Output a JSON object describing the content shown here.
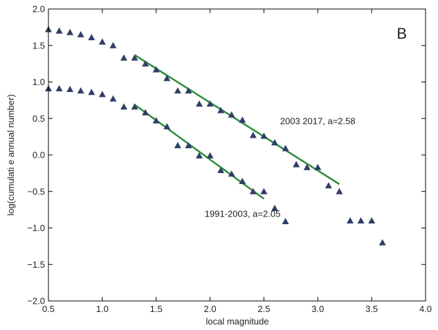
{
  "chart_data": {
    "type": "scatter",
    "title": "",
    "panel_label": "B",
    "xlabel": "local magnitude",
    "ylabel": "log(cumulati  e annual number)",
    "xlim": [
      0.5,
      4.0
    ],
    "ylim": [
      -2.0,
      2.0
    ],
    "x_ticks": [
      "0.5",
      "1.0",
      "1.5",
      "2.0",
      "2.5",
      "3.0",
      "3.5",
      "4.0"
    ],
    "y_ticks": [
      "2.0",
      "1.5",
      "1.0",
      "0.5",
      "0.0",
      "−0.5",
      "−1.0",
      "−1.5",
      "−2.0"
    ],
    "marker_color": "#2f3e66",
    "line_color": "#2e8b3a",
    "grid": false,
    "series": [
      {
        "points": [
          [
            0.5,
            1.72
          ],
          [
            0.6,
            1.7
          ],
          [
            0.7,
            1.68
          ],
          [
            0.8,
            1.65
          ],
          [
            0.9,
            1.61
          ],
          [
            1.0,
            1.55
          ],
          [
            1.1,
            1.5
          ],
          [
            1.2,
            1.33
          ],
          [
            1.3,
            1.33
          ],
          [
            1.4,
            1.25
          ],
          [
            1.5,
            1.17
          ],
          [
            1.6,
            1.05
          ],
          [
            1.7,
            0.88
          ],
          [
            1.8,
            0.88
          ],
          [
            1.9,
            0.7
          ],
          [
            2.0,
            0.7
          ],
          [
            2.1,
            0.61
          ],
          [
            2.2,
            0.55
          ],
          [
            2.3,
            0.48
          ],
          [
            2.4,
            0.27
          ],
          [
            2.5,
            0.26
          ],
          [
            2.6,
            0.17
          ],
          [
            2.7,
            0.09
          ],
          [
            2.8,
            -0.13
          ],
          [
            2.9,
            -0.17
          ],
          [
            3.0,
            -0.17
          ],
          [
            3.1,
            -0.42
          ],
          [
            3.2,
            -0.5
          ],
          [
            3.3,
            -0.9
          ],
          [
            3.4,
            -0.9
          ],
          [
            3.5,
            -0.9
          ],
          [
            3.6,
            -1.2
          ]
        ],
        "fit_line": [
          [
            1.3,
            1.37
          ],
          [
            3.2,
            -0.4
          ]
        ]
      },
      {
        "points": [
          [
            0.5,
            0.91
          ],
          [
            0.6,
            0.91
          ],
          [
            0.7,
            0.9
          ],
          [
            0.8,
            0.88
          ],
          [
            0.9,
            0.86
          ],
          [
            1.0,
            0.83
          ],
          [
            1.1,
            0.77
          ],
          [
            1.2,
            0.66
          ],
          [
            1.3,
            0.66
          ],
          [
            1.4,
            0.58
          ],
          [
            1.5,
            0.47
          ],
          [
            1.6,
            0.39
          ],
          [
            1.7,
            0.13
          ],
          [
            1.8,
            0.13
          ],
          [
            1.9,
            -0.01
          ],
          [
            2.0,
            -0.01
          ],
          [
            2.1,
            -0.21
          ],
          [
            2.2,
            -0.26
          ],
          [
            2.3,
            -0.36
          ],
          [
            2.4,
            -0.5
          ],
          [
            2.5,
            -0.5
          ],
          [
            2.6,
            -0.73
          ],
          [
            2.7,
            -0.91
          ]
        ],
        "fit_line": [
          [
            1.3,
            0.69
          ],
          [
            2.5,
            -0.6
          ]
        ]
      }
    ],
    "annotations": [
      {
        "text": "2003 2017, a=2.58",
        "x": 2.65,
        "y": 0.42
      },
      {
        "text": "1991-2003, a=2.05",
        "x": 1.95,
        "y": -0.85
      }
    ]
  }
}
